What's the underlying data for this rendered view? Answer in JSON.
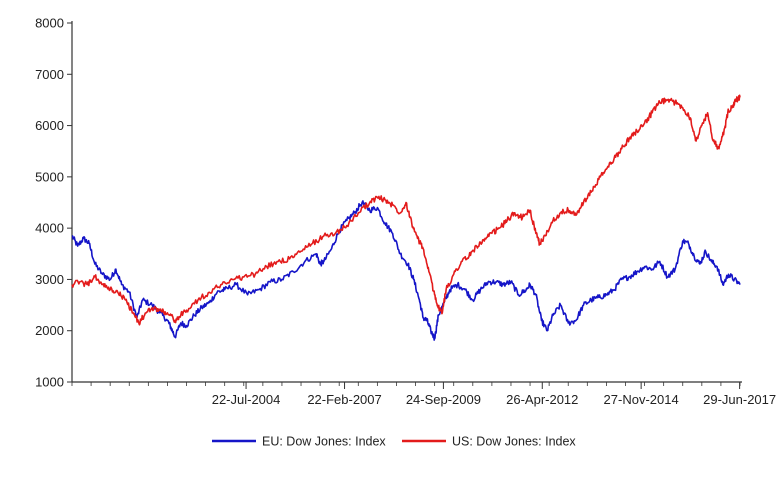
{
  "chart_data": {
    "type": "line",
    "title": "",
    "xlabel": "",
    "ylabel": "",
    "ylim": [
      1000,
      8000
    ],
    "y_ticks": [
      "1000",
      "2000",
      "3000",
      "4000",
      "5000",
      "6000",
      "7000",
      "8000"
    ],
    "x_range": [
      2000.0,
      2017.5
    ],
    "x_tick_labels": [
      {
        "year": 2004.56,
        "label": "22-Jul-2004"
      },
      {
        "year": 2007.14,
        "label": "22-Feb-2007"
      },
      {
        "year": 2009.73,
        "label": "24-Sep-2009"
      },
      {
        "year": 2012.32,
        "label": "26-Apr-2012"
      },
      {
        "year": 2014.91,
        "label": "27-Nov-2014"
      },
      {
        "year": 2017.49,
        "label": "29-Jun-2017"
      }
    ],
    "grid": false,
    "legend_position": "bottom",
    "series": [
      {
        "name": "EU: Dow Jones: Index",
        "color": "#1515c8",
        "points": [
          [
            2000.0,
            3850
          ],
          [
            2000.15,
            3650
          ],
          [
            2000.3,
            3800
          ],
          [
            2000.45,
            3700
          ],
          [
            2000.6,
            3300
          ],
          [
            2000.8,
            3100
          ],
          [
            2001.0,
            3000
          ],
          [
            2001.15,
            3200
          ],
          [
            2001.3,
            2900
          ],
          [
            2001.5,
            2750
          ],
          [
            2001.7,
            2250
          ],
          [
            2001.85,
            2600
          ],
          [
            2002.1,
            2500
          ],
          [
            2002.3,
            2350
          ],
          [
            2002.5,
            2200
          ],
          [
            2002.6,
            2050
          ],
          [
            2002.7,
            1880
          ],
          [
            2002.85,
            2150
          ],
          [
            2003.0,
            2100
          ],
          [
            2003.2,
            2300
          ],
          [
            2003.4,
            2450
          ],
          [
            2003.6,
            2550
          ],
          [
            2003.8,
            2750
          ],
          [
            2004.0,
            2800
          ],
          [
            2004.3,
            2900
          ],
          [
            2004.6,
            2700
          ],
          [
            2004.9,
            2800
          ],
          [
            2005.2,
            2950
          ],
          [
            2005.5,
            3000
          ],
          [
            2005.8,
            3150
          ],
          [
            2006.1,
            3350
          ],
          [
            2006.4,
            3500
          ],
          [
            2006.5,
            3300
          ],
          [
            2006.6,
            3350
          ],
          [
            2006.8,
            3600
          ],
          [
            2007.0,
            3950
          ],
          [
            2007.2,
            4150
          ],
          [
            2007.4,
            4300
          ],
          [
            2007.6,
            4500
          ],
          [
            2007.8,
            4350
          ],
          [
            2008.0,
            4400
          ],
          [
            2008.2,
            4100
          ],
          [
            2008.4,
            3900
          ],
          [
            2008.6,
            3500
          ],
          [
            2008.8,
            3300
          ],
          [
            2008.95,
            3000
          ],
          [
            2009.1,
            2600
          ],
          [
            2009.2,
            2250
          ],
          [
            2009.3,
            2200
          ],
          [
            2009.4,
            2000
          ],
          [
            2009.5,
            1850
          ],
          [
            2009.6,
            2300
          ],
          [
            2009.75,
            2550
          ],
          [
            2009.9,
            2800
          ],
          [
            2010.1,
            2900
          ],
          [
            2010.3,
            2800
          ],
          [
            2010.5,
            2600
          ],
          [
            2010.7,
            2800
          ],
          [
            2010.9,
            2950
          ],
          [
            2011.1,
            2950
          ],
          [
            2011.3,
            2900
          ],
          [
            2011.5,
            2950
          ],
          [
            2011.7,
            2700
          ],
          [
            2011.9,
            2800
          ],
          [
            2012.0,
            2900
          ],
          [
            2012.15,
            2700
          ],
          [
            2012.3,
            2200
          ],
          [
            2012.45,
            2000
          ],
          [
            2012.6,
            2300
          ],
          [
            2012.8,
            2500
          ],
          [
            2013.0,
            2150
          ],
          [
            2013.2,
            2200
          ],
          [
            2013.4,
            2500
          ],
          [
            2013.6,
            2600
          ],
          [
            2013.8,
            2650
          ],
          [
            2014.0,
            2700
          ],
          [
            2014.2,
            2800
          ],
          [
            2014.4,
            3000
          ],
          [
            2014.6,
            3050
          ],
          [
            2014.8,
            3150
          ],
          [
            2015.0,
            3250
          ],
          [
            2015.2,
            3200
          ],
          [
            2015.4,
            3350
          ],
          [
            2015.6,
            3050
          ],
          [
            2015.8,
            3200
          ],
          [
            2016.0,
            3750
          ],
          [
            2016.15,
            3700
          ],
          [
            2016.3,
            3450
          ],
          [
            2016.45,
            3300
          ],
          [
            2016.6,
            3550
          ],
          [
            2016.75,
            3350
          ],
          [
            2016.9,
            3250
          ],
          [
            2017.05,
            2900
          ],
          [
            2017.2,
            3100
          ],
          [
            2017.35,
            3000
          ],
          [
            2017.5,
            2900
          ]
        ]
      },
      {
        "name": "US: Dow Jones: Index",
        "color": "#e31b1b",
        "points": [
          [
            2000.0,
            2900
          ],
          [
            2000.2,
            2950
          ],
          [
            2000.4,
            2900
          ],
          [
            2000.6,
            3050
          ],
          [
            2000.8,
            2900
          ],
          [
            2001.0,
            2800
          ],
          [
            2001.2,
            2750
          ],
          [
            2001.4,
            2600
          ],
          [
            2001.6,
            2350
          ],
          [
            2001.75,
            2150
          ],
          [
            2001.9,
            2300
          ],
          [
            2002.1,
            2450
          ],
          [
            2002.3,
            2400
          ],
          [
            2002.5,
            2350
          ],
          [
            2002.7,
            2200
          ],
          [
            2002.85,
            2300
          ],
          [
            2003.0,
            2400
          ],
          [
            2003.3,
            2600
          ],
          [
            2003.6,
            2750
          ],
          [
            2003.9,
            2900
          ],
          [
            2004.2,
            3000
          ],
          [
            2004.5,
            3050
          ],
          [
            2004.8,
            3100
          ],
          [
            2005.1,
            3250
          ],
          [
            2005.4,
            3350
          ],
          [
            2005.7,
            3400
          ],
          [
            2006.0,
            3550
          ],
          [
            2006.3,
            3700
          ],
          [
            2006.6,
            3850
          ],
          [
            2006.9,
            3900
          ],
          [
            2007.2,
            4050
          ],
          [
            2007.5,
            4300
          ],
          [
            2007.8,
            4500
          ],
          [
            2008.0,
            4600
          ],
          [
            2008.2,
            4550
          ],
          [
            2008.4,
            4450
          ],
          [
            2008.6,
            4300
          ],
          [
            2008.75,
            4500
          ],
          [
            2008.9,
            4100
          ],
          [
            2009.05,
            3800
          ],
          [
            2009.2,
            3600
          ],
          [
            2009.35,
            3150
          ],
          [
            2009.5,
            2700
          ],
          [
            2009.6,
            2450
          ],
          [
            2009.7,
            2350
          ],
          [
            2009.8,
            2800
          ],
          [
            2010.0,
            3100
          ],
          [
            2010.2,
            3350
          ],
          [
            2010.4,
            3450
          ],
          [
            2010.6,
            3650
          ],
          [
            2010.8,
            3750
          ],
          [
            2011.0,
            3900
          ],
          [
            2011.2,
            4000
          ],
          [
            2011.4,
            4150
          ],
          [
            2011.6,
            4300
          ],
          [
            2011.8,
            4200
          ],
          [
            2012.0,
            4350
          ],
          [
            2012.15,
            3900
          ],
          [
            2012.25,
            3700
          ],
          [
            2012.4,
            3850
          ],
          [
            2012.6,
            4150
          ],
          [
            2012.8,
            4300
          ],
          [
            2013.0,
            4350
          ],
          [
            2013.2,
            4250
          ],
          [
            2013.4,
            4500
          ],
          [
            2013.6,
            4700
          ],
          [
            2013.8,
            4950
          ],
          [
            2014.0,
            5150
          ],
          [
            2014.2,
            5350
          ],
          [
            2014.4,
            5550
          ],
          [
            2014.6,
            5750
          ],
          [
            2014.8,
            5900
          ],
          [
            2015.0,
            6050
          ],
          [
            2015.2,
            6250
          ],
          [
            2015.4,
            6450
          ],
          [
            2015.6,
            6500
          ],
          [
            2015.8,
            6450
          ],
          [
            2016.0,
            6350
          ],
          [
            2016.2,
            6150
          ],
          [
            2016.35,
            5700
          ],
          [
            2016.5,
            6000
          ],
          [
            2016.65,
            6250
          ],
          [
            2016.8,
            5700
          ],
          [
            2016.95,
            5550
          ],
          [
            2017.1,
            5950
          ],
          [
            2017.2,
            6300
          ],
          [
            2017.3,
            6350
          ],
          [
            2017.4,
            6500
          ],
          [
            2017.5,
            6550
          ]
        ]
      }
    ]
  }
}
